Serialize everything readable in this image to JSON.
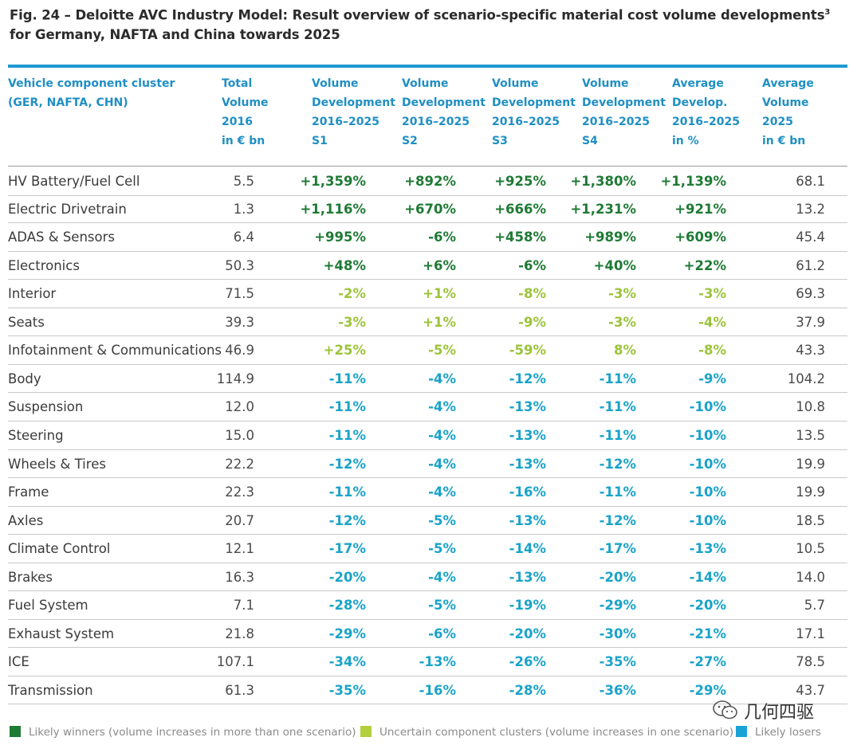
{
  "title": "Fig. 24 – Deloitte AVC Industry Model: Result overview of scenario-specific material cost volume developments",
  "title_sup": "3",
  "title_line2": "for Germany, NAFTA and China towards 2025",
  "headers": {
    "cluster": "Vehicle component cluster\n(GER, NAFTA, CHN)",
    "total": "Total\nVolume\n2016\nin € bn",
    "s1": "Volume\nDevelopment\n2016–2025\nS1",
    "s2": "Volume\nDevelopment\n2016–2025\nS2",
    "s3": "Volume\nDevelopment\n2016–2025\nS3",
    "s4": "Volume\nDevelopment\n2016–2025\nS4",
    "avg_dev": "Average\nDevelop.\n2016–2025\nin %",
    "avg_vol": "Average\nVolume\n2025\nin € bn"
  },
  "colors": {
    "green": "#1f7a35",
    "lime": "#a8c93a",
    "blue": "#1aa3c9",
    "accent": "#1f9bd1"
  },
  "rows": [
    {
      "name": "HV Battery/Fuel Cell",
      "total": "5.5",
      "s1": "+1,359%",
      "s2": "+892%",
      "s3": "+925%",
      "s4": "+1,380%",
      "avg": "+1,139%",
      "vol": "68.1",
      "cls": [
        "green",
        "green",
        "green",
        "green",
        "green"
      ]
    },
    {
      "name": "Electric Drivetrain",
      "total": "1.3",
      "s1": "+1,116%",
      "s2": "+670%",
      "s3": "+666%",
      "s4": "+1,231%",
      "avg": "+921%",
      "vol": "13.2",
      "cls": [
        "green",
        "green",
        "green",
        "green",
        "green"
      ]
    },
    {
      "name": "ADAS & Sensors",
      "total": "6.4",
      "s1": "+995%",
      "s2": "-6%",
      "s3": "+458%",
      "s4": "+989%",
      "avg": "+609%",
      "vol": "45.4",
      "cls": [
        "green",
        "green",
        "green",
        "green",
        "green"
      ]
    },
    {
      "name": "Electronics",
      "total": "50.3",
      "s1": "+48%",
      "s2": "+6%",
      "s3": "-6%",
      "s4": "+40%",
      "avg": "+22%",
      "vol": "61.2",
      "cls": [
        "green",
        "green",
        "green",
        "green",
        "green"
      ]
    },
    {
      "name": "Interior",
      "total": "71.5",
      "s1": "-2%",
      "s2": "+1%",
      "s3": "-8%",
      "s4": "-3%",
      "avg": "-3%",
      "vol": "69.3",
      "cls": [
        "lime",
        "lime",
        "lime",
        "lime",
        "lime"
      ]
    },
    {
      "name": "Seats",
      "total": "39.3",
      "s1": "-3%",
      "s2": "+1%",
      "s3": "-9%",
      "s4": "-3%",
      "avg": "-4%",
      "vol": "37.9",
      "cls": [
        "lime",
        "lime",
        "lime",
        "lime",
        "lime"
      ]
    },
    {
      "name": "Infotainment & Communications",
      "total": "46.9",
      "s1": "+25%",
      "s2": "-5%",
      "s3": "-59%",
      "s4": "8%",
      "avg": "-8%",
      "vol": "43.3",
      "cls": [
        "lime",
        "lime",
        "lime",
        "lime",
        "lime"
      ]
    },
    {
      "name": "Body",
      "total": "114.9",
      "s1": "-11%",
      "s2": "-4%",
      "s3": "-12%",
      "s4": "-11%",
      "avg": "-9%",
      "vol": "104.2",
      "cls": [
        "blue",
        "blue",
        "blue",
        "blue",
        "blue"
      ]
    },
    {
      "name": "Suspension",
      "total": "12.0",
      "s1": "-11%",
      "s2": "-4%",
      "s3": "-13%",
      "s4": "-11%",
      "avg": "-10%",
      "vol": "10.8",
      "cls": [
        "blue",
        "blue",
        "blue",
        "blue",
        "blue"
      ]
    },
    {
      "name": "Steering",
      "total": "15.0",
      "s1": "-11%",
      "s2": "-4%",
      "s3": "-13%",
      "s4": "-11%",
      "avg": "-10%",
      "vol": "13.5",
      "cls": [
        "blue",
        "blue",
        "blue",
        "blue",
        "blue"
      ]
    },
    {
      "name": "Wheels & Tires",
      "total": "22.2",
      "s1": "-12%",
      "s2": "-4%",
      "s3": "-13%",
      "s4": "-12%",
      "avg": "-10%",
      "vol": "19.9",
      "cls": [
        "blue",
        "blue",
        "blue",
        "blue",
        "blue"
      ]
    },
    {
      "name": "Frame",
      "total": "22.3",
      "s1": "-11%",
      "s2": "-4%",
      "s3": "-16%",
      "s4": "-11%",
      "avg": "-10%",
      "vol": "19.9",
      "cls": [
        "blue",
        "blue",
        "blue",
        "blue",
        "blue"
      ]
    },
    {
      "name": "Axles",
      "total": "20.7",
      "s1": "-12%",
      "s2": "-5%",
      "s3": "-13%",
      "s4": "-12%",
      "avg": "-10%",
      "vol": "18.5",
      "cls": [
        "blue",
        "blue",
        "blue",
        "blue",
        "blue"
      ]
    },
    {
      "name": "Climate Control",
      "total": "12.1",
      "s1": "-17%",
      "s2": "-5%",
      "s3": "-14%",
      "s4": "-17%",
      "avg": "-13%",
      "vol": "10.5",
      "cls": [
        "blue",
        "blue",
        "blue",
        "blue",
        "blue"
      ]
    },
    {
      "name": "Brakes",
      "total": "16.3",
      "s1": "-20%",
      "s2": "-4%",
      "s3": "-13%",
      "s4": "-20%",
      "avg": "-14%",
      "vol": "14.0",
      "cls": [
        "blue",
        "blue",
        "blue",
        "blue",
        "blue"
      ]
    },
    {
      "name": "Fuel System",
      "total": "7.1",
      "s1": "-28%",
      "s2": "-5%",
      "s3": "-19%",
      "s4": "-29%",
      "avg": "-20%",
      "vol": "5.7",
      "cls": [
        "blue",
        "blue",
        "blue",
        "blue",
        "blue"
      ]
    },
    {
      "name": "Exhaust System",
      "total": "21.8",
      "s1": "-29%",
      "s2": "-6%",
      "s3": "-20%",
      "s4": "-30%",
      "avg": "-21%",
      "vol": "17.1",
      "cls": [
        "blue",
        "blue",
        "blue",
        "blue",
        "blue"
      ]
    },
    {
      "name": "ICE",
      "total": "107.1",
      "s1": "-34%",
      "s2": "-13%",
      "s3": "-26%",
      "s4": "-35%",
      "avg": "-27%",
      "vol": "78.5",
      "cls": [
        "blue",
        "blue",
        "blue",
        "blue",
        "blue"
      ]
    },
    {
      "name": "Transmission",
      "total": "61.3",
      "s1": "-35%",
      "s2": "-16%",
      "s3": "-28%",
      "s4": "-36%",
      "avg": "-29%",
      "vol": "43.7",
      "cls": [
        "blue",
        "blue",
        "blue",
        "blue",
        "blue"
      ]
    }
  ],
  "legend": {
    "winners": "Likely winners (volume increases in more than one scenario)",
    "uncertain": "Uncertain component clusters (volume increases in one scenario)",
    "losers": "Likely losers"
  },
  "watermark": "几何四驱"
}
